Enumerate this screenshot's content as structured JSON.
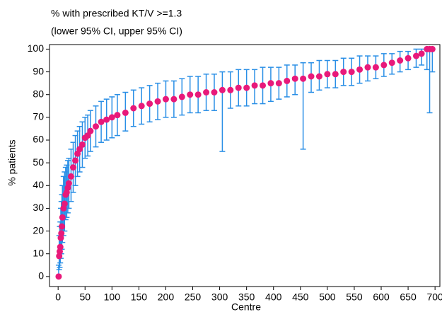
{
  "chart_data": {
    "type": "scatter",
    "title": "% with prescribed KT/V >=1.3",
    "subtitle": "(lower 95% CI, upper 95% CI)",
    "x_label": "Centre",
    "y_label": "% patients",
    "xlim": [
      -16,
      709
    ],
    "ylim": [
      -4.4,
      102
    ],
    "xticks": [
      0,
      50,
      100,
      150,
      200,
      250,
      300,
      350,
      400,
      450,
      500,
      550,
      600,
      650,
      700
    ],
    "yticks": [
      0,
      10,
      20,
      30,
      40,
      50,
      60,
      70,
      80,
      90,
      100
    ],
    "x": [
      1,
      2,
      3,
      4,
      5,
      6,
      7,
      8,
      10,
      12,
      14,
      16,
      18,
      20,
      24,
      28,
      32,
      36,
      40,
      45,
      50,
      55,
      60,
      70,
      80,
      90,
      100,
      110,
      125,
      140,
      155,
      170,
      185,
      200,
      215,
      230,
      245,
      260,
      275,
      290,
      305,
      320,
      335,
      350,
      365,
      380,
      395,
      410,
      425,
      440,
      455,
      470,
      485,
      500,
      515,
      530,
      545,
      560,
      575,
      590,
      605,
      620,
      635,
      650,
      665,
      675,
      685,
      690,
      695
    ],
    "series": [
      {
        "color": "#e8197a",
        "error_color": "#2a8fe6",
        "values": [
          0,
          9,
          11,
          13,
          17,
          19,
          22,
          26,
          30,
          32,
          36,
          37,
          39,
          41,
          44,
          48,
          51,
          54,
          56,
          58,
          61,
          62,
          64,
          66,
          68,
          69,
          70,
          71,
          72,
          74,
          75,
          76,
          77,
          78,
          78,
          79,
          80,
          80,
          81,
          81,
          82,
          82,
          83,
          83,
          84,
          84,
          85,
          85,
          86,
          87,
          87,
          88,
          88,
          89,
          89,
          90,
          90,
          91,
          92,
          92,
          93,
          94,
          95,
          96,
          97,
          98,
          100,
          100,
          100
        ],
        "lower": [
          0,
          3,
          4,
          6,
          8,
          10,
          12,
          15,
          18,
          20,
          25,
          26,
          28,
          30,
          33,
          37,
          40,
          44,
          46,
          48,
          52,
          53,
          55,
          57,
          59,
          60,
          61,
          62,
          64,
          66,
          67,
          68,
          69,
          70,
          70,
          71,
          72,
          72,
          73,
          73,
          55,
          74,
          75,
          75,
          76,
          76,
          77,
          78,
          79,
          80,
          56,
          81,
          82,
          83,
          83,
          84,
          84,
          85,
          86,
          87,
          88,
          89,
          90,
          91,
          92,
          93,
          91,
          72,
          90
        ],
        "upper": [
          5,
          18,
          22,
          24,
          30,
          33,
          36,
          40,
          44,
          46,
          48,
          49,
          51,
          52,
          56,
          59,
          62,
          64,
          66,
          68,
          70,
          71,
          73,
          75,
          77,
          78,
          79,
          80,
          81,
          82,
          83,
          84,
          85,
          86,
          86,
          87,
          88,
          88,
          89,
          89,
          90,
          90,
          91,
          91,
          91,
          92,
          92,
          92,
          93,
          93,
          94,
          94,
          95,
          95,
          95,
          96,
          96,
          97,
          97,
          97,
          98,
          98,
          99,
          99,
          100,
          100,
          100,
          100,
          100
        ]
      }
    ]
  }
}
